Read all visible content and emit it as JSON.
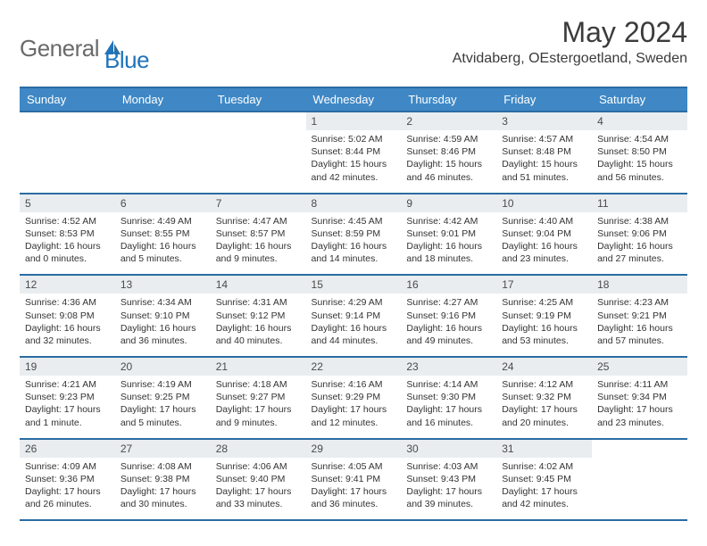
{
  "logo": {
    "general": "General",
    "blue": "Blue"
  },
  "title": "May 2024",
  "location": "Atvidaberg, OEstergoetland, Sweden",
  "colors": {
    "header_bg": "#3f88c5",
    "header_border": "#2b6ca3",
    "daynum_bg": "#e9edef",
    "logo_gray": "#6a6a6a",
    "logo_blue": "#2173ba",
    "text": "#333333"
  },
  "day_headers": [
    "Sunday",
    "Monday",
    "Tuesday",
    "Wednesday",
    "Thursday",
    "Friday",
    "Saturday"
  ],
  "weeks": [
    [
      {
        "n": "",
        "sr": "",
        "ss": "",
        "dl": ""
      },
      {
        "n": "",
        "sr": "",
        "ss": "",
        "dl": ""
      },
      {
        "n": "",
        "sr": "",
        "ss": "",
        "dl": ""
      },
      {
        "n": "1",
        "sr": "Sunrise: 5:02 AM",
        "ss": "Sunset: 8:44 PM",
        "dl": "Daylight: 15 hours and 42 minutes."
      },
      {
        "n": "2",
        "sr": "Sunrise: 4:59 AM",
        "ss": "Sunset: 8:46 PM",
        "dl": "Daylight: 15 hours and 46 minutes."
      },
      {
        "n": "3",
        "sr": "Sunrise: 4:57 AM",
        "ss": "Sunset: 8:48 PM",
        "dl": "Daylight: 15 hours and 51 minutes."
      },
      {
        "n": "4",
        "sr": "Sunrise: 4:54 AM",
        "ss": "Sunset: 8:50 PM",
        "dl": "Daylight: 15 hours and 56 minutes."
      }
    ],
    [
      {
        "n": "5",
        "sr": "Sunrise: 4:52 AM",
        "ss": "Sunset: 8:53 PM",
        "dl": "Daylight: 16 hours and 0 minutes."
      },
      {
        "n": "6",
        "sr": "Sunrise: 4:49 AM",
        "ss": "Sunset: 8:55 PM",
        "dl": "Daylight: 16 hours and 5 minutes."
      },
      {
        "n": "7",
        "sr": "Sunrise: 4:47 AM",
        "ss": "Sunset: 8:57 PM",
        "dl": "Daylight: 16 hours and 9 minutes."
      },
      {
        "n": "8",
        "sr": "Sunrise: 4:45 AM",
        "ss": "Sunset: 8:59 PM",
        "dl": "Daylight: 16 hours and 14 minutes."
      },
      {
        "n": "9",
        "sr": "Sunrise: 4:42 AM",
        "ss": "Sunset: 9:01 PM",
        "dl": "Daylight: 16 hours and 18 minutes."
      },
      {
        "n": "10",
        "sr": "Sunrise: 4:40 AM",
        "ss": "Sunset: 9:04 PM",
        "dl": "Daylight: 16 hours and 23 minutes."
      },
      {
        "n": "11",
        "sr": "Sunrise: 4:38 AM",
        "ss": "Sunset: 9:06 PM",
        "dl": "Daylight: 16 hours and 27 minutes."
      }
    ],
    [
      {
        "n": "12",
        "sr": "Sunrise: 4:36 AM",
        "ss": "Sunset: 9:08 PM",
        "dl": "Daylight: 16 hours and 32 minutes."
      },
      {
        "n": "13",
        "sr": "Sunrise: 4:34 AM",
        "ss": "Sunset: 9:10 PM",
        "dl": "Daylight: 16 hours and 36 minutes."
      },
      {
        "n": "14",
        "sr": "Sunrise: 4:31 AM",
        "ss": "Sunset: 9:12 PM",
        "dl": "Daylight: 16 hours and 40 minutes."
      },
      {
        "n": "15",
        "sr": "Sunrise: 4:29 AM",
        "ss": "Sunset: 9:14 PM",
        "dl": "Daylight: 16 hours and 44 minutes."
      },
      {
        "n": "16",
        "sr": "Sunrise: 4:27 AM",
        "ss": "Sunset: 9:16 PM",
        "dl": "Daylight: 16 hours and 49 minutes."
      },
      {
        "n": "17",
        "sr": "Sunrise: 4:25 AM",
        "ss": "Sunset: 9:19 PM",
        "dl": "Daylight: 16 hours and 53 minutes."
      },
      {
        "n": "18",
        "sr": "Sunrise: 4:23 AM",
        "ss": "Sunset: 9:21 PM",
        "dl": "Daylight: 16 hours and 57 minutes."
      }
    ],
    [
      {
        "n": "19",
        "sr": "Sunrise: 4:21 AM",
        "ss": "Sunset: 9:23 PM",
        "dl": "Daylight: 17 hours and 1 minute."
      },
      {
        "n": "20",
        "sr": "Sunrise: 4:19 AM",
        "ss": "Sunset: 9:25 PM",
        "dl": "Daylight: 17 hours and 5 minutes."
      },
      {
        "n": "21",
        "sr": "Sunrise: 4:18 AM",
        "ss": "Sunset: 9:27 PM",
        "dl": "Daylight: 17 hours and 9 minutes."
      },
      {
        "n": "22",
        "sr": "Sunrise: 4:16 AM",
        "ss": "Sunset: 9:29 PM",
        "dl": "Daylight: 17 hours and 12 minutes."
      },
      {
        "n": "23",
        "sr": "Sunrise: 4:14 AM",
        "ss": "Sunset: 9:30 PM",
        "dl": "Daylight: 17 hours and 16 minutes."
      },
      {
        "n": "24",
        "sr": "Sunrise: 4:12 AM",
        "ss": "Sunset: 9:32 PM",
        "dl": "Daylight: 17 hours and 20 minutes."
      },
      {
        "n": "25",
        "sr": "Sunrise: 4:11 AM",
        "ss": "Sunset: 9:34 PM",
        "dl": "Daylight: 17 hours and 23 minutes."
      }
    ],
    [
      {
        "n": "26",
        "sr": "Sunrise: 4:09 AM",
        "ss": "Sunset: 9:36 PM",
        "dl": "Daylight: 17 hours and 26 minutes."
      },
      {
        "n": "27",
        "sr": "Sunrise: 4:08 AM",
        "ss": "Sunset: 9:38 PM",
        "dl": "Daylight: 17 hours and 30 minutes."
      },
      {
        "n": "28",
        "sr": "Sunrise: 4:06 AM",
        "ss": "Sunset: 9:40 PM",
        "dl": "Daylight: 17 hours and 33 minutes."
      },
      {
        "n": "29",
        "sr": "Sunrise: 4:05 AM",
        "ss": "Sunset: 9:41 PM",
        "dl": "Daylight: 17 hours and 36 minutes."
      },
      {
        "n": "30",
        "sr": "Sunrise: 4:03 AM",
        "ss": "Sunset: 9:43 PM",
        "dl": "Daylight: 17 hours and 39 minutes."
      },
      {
        "n": "31",
        "sr": "Sunrise: 4:02 AM",
        "ss": "Sunset: 9:45 PM",
        "dl": "Daylight: 17 hours and 42 minutes."
      },
      {
        "n": "",
        "sr": "",
        "ss": "",
        "dl": ""
      }
    ]
  ]
}
